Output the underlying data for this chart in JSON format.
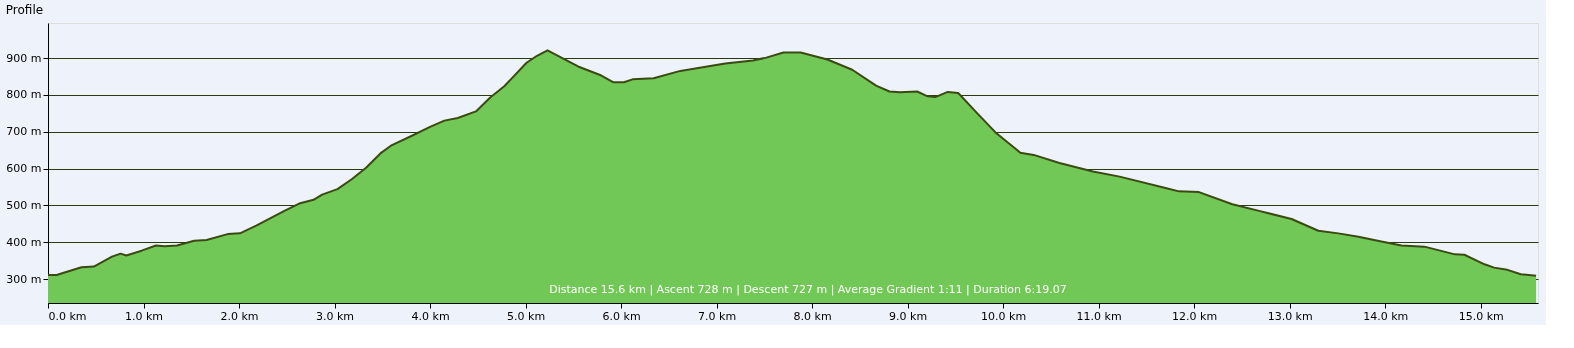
{
  "chart_data": {
    "type": "area",
    "title": "Profile",
    "x": [
      0,
      0.09,
      0.35,
      0.48,
      0.67,
      0.76,
      0.82,
      0.98,
      1.13,
      1.22,
      1.35,
      1.53,
      1.66,
      1.88,
      2.01,
      2.18,
      2.48,
      2.63,
      2.78,
      2.87,
      3.03,
      3.18,
      3.33,
      3.48,
      3.59,
      3.81,
      4.0,
      4.15,
      4.29,
      4.48,
      4.63,
      4.78,
      5.01,
      5.12,
      5.23,
      5.55,
      5.78,
      5.92,
      6.03,
      6.12,
      6.34,
      6.62,
      7.09,
      7.38,
      7.52,
      7.7,
      7.88,
      8.16,
      8.42,
      8.67,
      8.81,
      8.92,
      9.1,
      9.21,
      9.29,
      9.42,
      9.53,
      9.71,
      9.92,
      10.18,
      10.32,
      10.59,
      10.94,
      11.22,
      11.7,
      11.84,
      12.05,
      12.4,
      12.68,
      13.02,
      13.3,
      13.51,
      13.72,
      13.96,
      14.17,
      14.41,
      14.73,
      14.83,
      15.04,
      15.14,
      15.28,
      15.42,
      15.58
    ],
    "series": [
      {
        "color": "#72c856",
        "values": [
          311,
          311,
          332,
          334,
          361,
          369,
          364,
          377,
          391,
          389,
          391,
          404,
          406,
          422,
          424,
          445,
          486,
          505,
          515,
          529,
          544,
          571,
          602,
          641,
          662,
          689,
          713,
          730,
          737,
          755,
          793,
          824,
          887,
          906,
          921,
          877,
          854,
          834,
          834,
          842,
          845,
          865,
          885,
          893,
          901,
          915,
          915,
          896,
          868,
          825,
          809,
          807,
          809,
          796,
          794,
          808,
          805,
          755,
          698,
          643,
          637,
          615,
          592,
          578,
          547,
          538,
          536,
          503,
          485,
          463,
          431,
          424,
          415,
          402,
          391,
          388,
          367,
          366,
          340,
          331,
          325,
          313,
          309
        ]
      }
    ],
    "xlim": [
      0,
      15.6
    ],
    "xticks": [
      {
        "value": 0,
        "label": "0.0 km"
      },
      {
        "value": 1,
        "label": "1.0 km"
      },
      {
        "value": 2,
        "label": "2.0 km"
      },
      {
        "value": 3,
        "label": "3.0 km"
      },
      {
        "value": 4,
        "label": "4.0 km"
      },
      {
        "value": 5,
        "label": "5.0 km"
      },
      {
        "value": 6,
        "label": "6.0 km"
      },
      {
        "value": 7,
        "label": "7.0 km"
      },
      {
        "value": 8,
        "label": "8.0 km"
      },
      {
        "value": 9,
        "label": "9.0 km"
      },
      {
        "value": 10,
        "label": "10.0 km"
      },
      {
        "value": 11,
        "label": "11.0 km"
      },
      {
        "value": 12,
        "label": "12.0 km"
      },
      {
        "value": 13,
        "label": "13.0 km"
      },
      {
        "value": 14,
        "label": "14.0 km"
      },
      {
        "value": 15,
        "label": "15.0 km"
      }
    ],
    "ylim": [
      235,
      995
    ],
    "yticks": [
      {
        "value": 300,
        "label": "300 m"
      },
      {
        "value": 400,
        "label": "400 m"
      },
      {
        "value": 500,
        "label": "500 m"
      },
      {
        "value": 600,
        "label": "600 m"
      },
      {
        "value": 700,
        "label": "700 m"
      },
      {
        "value": 800,
        "label": "800 m"
      },
      {
        "value": 900,
        "label": "900 m"
      }
    ],
    "grid": "y",
    "annotations": [
      "Distance 15.6 km | Ascent 728 m | Descent 727 m | Average Gradient 1:11 | Duration 6:19.07"
    ]
  }
}
